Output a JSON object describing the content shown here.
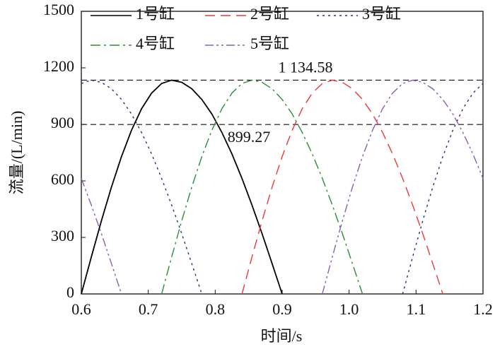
{
  "chart_data": {
    "type": "line",
    "xlabel": "时间/s",
    "ylabel": "流量/(L/min)",
    "x": [
      0.6,
      0.615,
      0.63,
      0.645,
      0.66,
      0.675,
      0.69,
      0.705,
      0.72,
      0.735,
      0.75,
      0.765,
      0.78,
      0.795,
      0.81,
      0.825,
      0.84,
      0.855,
      0.87,
      0.885,
      0.9,
      0.915,
      0.93,
      0.945,
      0.96,
      0.975,
      0.99,
      1.005,
      1.02,
      1.035,
      1.05,
      1.065,
      1.08,
      1.095,
      1.11,
      1.125,
      1.14,
      1.155,
      1.17,
      1.185,
      1.2
    ],
    "series": [
      {
        "name": "1号缸",
        "color": "#000000",
        "dash": "solid",
        "values": [
          0,
          197,
          388,
          567,
          729,
          869,
          983,
          1066,
          1117,
          1134.58,
          1123,
          1089,
          1032,
          955,
          857,
          743,
          613,
          471,
          320,
          161,
          0,
          null,
          null,
          null,
          null,
          null,
          null,
          null,
          null,
          null,
          null,
          null,
          null,
          null,
          null,
          null,
          null,
          null,
          null,
          null,
          null
        ]
      },
      {
        "name": "2号缸",
        "color": "#e8393c",
        "dash": "dashed",
        "values": [
          null,
          null,
          null,
          null,
          null,
          null,
          null,
          null,
          null,
          null,
          null,
          null,
          null,
          null,
          null,
          null,
          0,
          197,
          388,
          567,
          729,
          869,
          983,
          1066,
          1117,
          1134.58,
          1123,
          1089,
          1032,
          955,
          857,
          743,
          613,
          471,
          320,
          161,
          0,
          null,
          null,
          null,
          null
        ]
      },
      {
        "name": "3号缸",
        "color": "#2b2f7a",
        "dash": "dotted",
        "values": [
          1117,
          1134.58,
          1123,
          1089,
          1032,
          955,
          857,
          743,
          613,
          471,
          320,
          161,
          0,
          null,
          null,
          null,
          null,
          null,
          null,
          null,
          null,
          null,
          null,
          null,
          null,
          null,
          null,
          null,
          null,
          null,
          null,
          null,
          0,
          197,
          388,
          567,
          729,
          869,
          983,
          1066,
          1117
        ]
      },
      {
        "name": "4号缸",
        "color": "#2e8b3a",
        "dash": "dashdot",
        "values": [
          null,
          null,
          null,
          null,
          null,
          null,
          null,
          null,
          0,
          197,
          388,
          567,
          729,
          869,
          983,
          1066,
          1117,
          1134.58,
          1123,
          1089,
          1032,
          955,
          857,
          743,
          613,
          471,
          320,
          161,
          0,
          null,
          null,
          null,
          null,
          null,
          null,
          null,
          null,
          null,
          null,
          null,
          null
        ]
      },
      {
        "name": "5号缸",
        "color": "#8a5fb0",
        "dash": "dashdotdot",
        "values": [
          613,
          471,
          320,
          161,
          0,
          null,
          null,
          null,
          null,
          null,
          null,
          null,
          null,
          null,
          null,
          null,
          null,
          null,
          null,
          null,
          null,
          null,
          null,
          null,
          0,
          197,
          388,
          567,
          729,
          869,
          983,
          1066,
          1117,
          1134.58,
          1123,
          1089,
          1032,
          955,
          857,
          743,
          613
        ]
      }
    ],
    "hlines": [
      {
        "value": 1134.58,
        "label": "1 134.58"
      },
      {
        "value": 899.27,
        "label": "899.27"
      }
    ],
    "xlim": [
      0.6,
      1.2
    ],
    "xticks": [
      0.6,
      0.7,
      0.8,
      0.9,
      {
        "value": 1,
        "label": "1.0"
      },
      1.1,
      1.2
    ],
    "ylim": [
      0,
      1500
    ],
    "yticks": [
      0,
      300,
      600,
      900,
      1200,
      1500
    ]
  }
}
